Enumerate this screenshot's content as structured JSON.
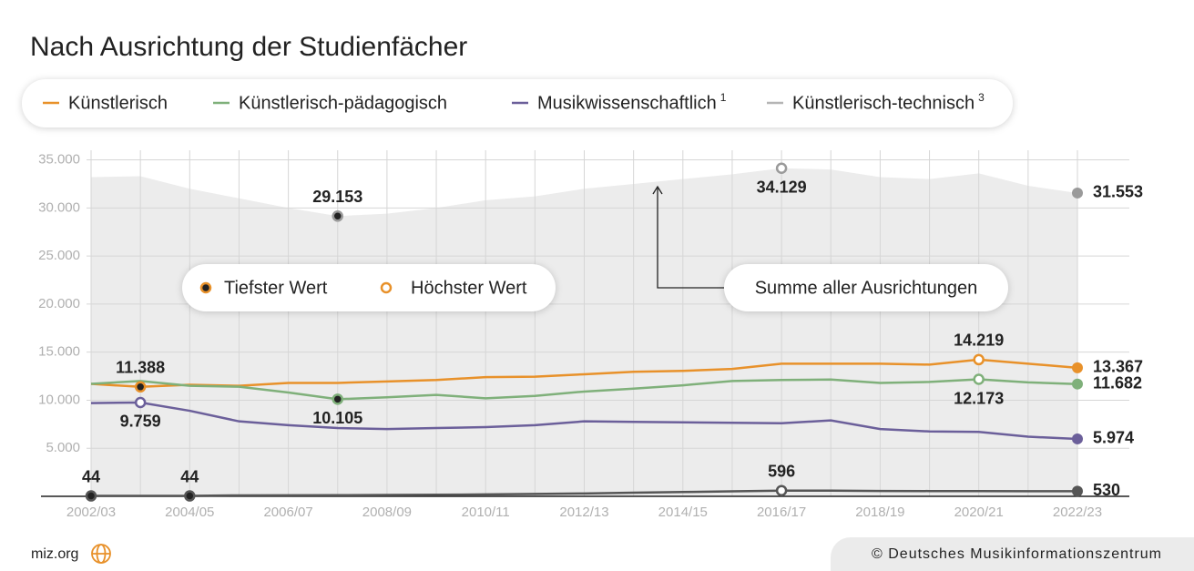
{
  "chart_data": {
    "type": "line",
    "title": "Nach Ausrichtung der Studienfächer",
    "categories": [
      "2002/03",
      null,
      "2004/05",
      null,
      "2006/07",
      null,
      "2008/09",
      null,
      "2010/11",
      null,
      "2012/13",
      null,
      "2014/15",
      null,
      "2016/17",
      null,
      "2018/19",
      null,
      "2020/21",
      null,
      "2022/23"
    ],
    "ylim": [
      0,
      36000
    ],
    "yticks": [
      {
        "value": 5000,
        "label": "5.000"
      },
      {
        "value": 10000,
        "label": "10.000"
      },
      {
        "value": 15000,
        "label": "15.000"
      },
      {
        "value": 20000,
        "label": "20.000"
      },
      {
        "value": 25000,
        "label": "25.000"
      },
      {
        "value": 30000,
        "label": "30.000"
      },
      {
        "value": 35000,
        "label": "35.000"
      }
    ],
    "grid": true,
    "total": {
      "name": "Summe aller Ausrichtungen",
      "color": "#ececec",
      "point_color": "#9a9a9a",
      "values": [
        33200,
        33300,
        32000,
        31000,
        30000,
        29153,
        29400,
        30000,
        30800,
        31200,
        32000,
        32500,
        33000,
        33500,
        34129,
        34000,
        33200,
        33000,
        33600,
        32300,
        31553
      ],
      "value_labels": [
        null,
        null,
        null,
        null,
        null,
        "29.153",
        null,
        null,
        null,
        null,
        null,
        null,
        null,
        null,
        "34.129",
        null,
        null,
        null,
        null,
        null,
        "31.553"
      ],
      "lowest_indices": [
        5
      ],
      "highest_indices": [
        14
      ]
    },
    "series": [
      {
        "name": "Künstlerisch",
        "color": "#e8912a",
        "line_color": "#e8912a",
        "values": [
          11700,
          11388,
          11600,
          11500,
          11800,
          11800,
          11950,
          12100,
          12400,
          12450,
          12700,
          12950,
          13050,
          13250,
          13800,
          13800,
          13800,
          13700,
          14219,
          13800,
          13367
        ],
        "value_labels": [
          null,
          "11.388",
          null,
          null,
          null,
          null,
          null,
          null,
          null,
          null,
          null,
          null,
          null,
          null,
          null,
          null,
          null,
          null,
          "14.219",
          null,
          "13.367"
        ],
        "lowest_indices": [
          1
        ],
        "highest_indices": [
          18
        ]
      },
      {
        "name": "Künstlerisch-pädagogisch",
        "color": "#7fb07a",
        "line_color": "#7fb07a",
        "values": [
          11700,
          12000,
          11500,
          11400,
          10800,
          10105,
          10300,
          10550,
          10200,
          10450,
          10900,
          11200,
          11550,
          12000,
          12100,
          12150,
          11800,
          11900,
          12173,
          11850,
          11682
        ],
        "value_labels": [
          null,
          null,
          null,
          null,
          null,
          "10.105",
          null,
          null,
          null,
          null,
          null,
          null,
          null,
          null,
          null,
          null,
          null,
          null,
          "12.173",
          null,
          "11.682"
        ],
        "lowest_indices": [
          5
        ],
        "highest_indices": [
          18
        ]
      },
      {
        "name": "Musikwissenschaftlich",
        "footnote": "1",
        "color": "#6b5f9a",
        "line_color": "#6b5f9a",
        "values": [
          9700,
          9759,
          8900,
          7800,
          7400,
          7100,
          7000,
          7100,
          7200,
          7400,
          7800,
          7750,
          7700,
          7650,
          7600,
          7900,
          7000,
          6750,
          6700,
          6200,
          5974
        ],
        "value_labels": [
          null,
          "9.759",
          null,
          null,
          null,
          null,
          null,
          null,
          null,
          null,
          null,
          null,
          null,
          null,
          null,
          null,
          null,
          null,
          null,
          null,
          "5.974"
        ],
        "lowest_indices": [],
        "highest_indices": [
          1
        ]
      },
      {
        "name": "Künstlerisch-technisch",
        "footnote": "3",
        "color": "#b5b5b5",
        "line_color": "#555555",
        "values": [
          44,
          50,
          44,
          100,
          110,
          120,
          140,
          160,
          200,
          250,
          300,
          380,
          450,
          520,
          596,
          590,
          560,
          550,
          540,
          535,
          530
        ],
        "value_labels": [
          "44",
          null,
          "44",
          null,
          null,
          null,
          null,
          null,
          null,
          null,
          null,
          null,
          null,
          null,
          "596",
          null,
          null,
          null,
          null,
          null,
          "530"
        ],
        "lowest_indices": [
          0,
          2
        ],
        "highest_indices": [
          14
        ]
      }
    ],
    "marker_legend": {
      "lowest": "Tiefster Wert",
      "highest": "Höchster Wert"
    },
    "source": "miz.org",
    "copyright": "© Deutsches Musikinformationszentrum"
  }
}
